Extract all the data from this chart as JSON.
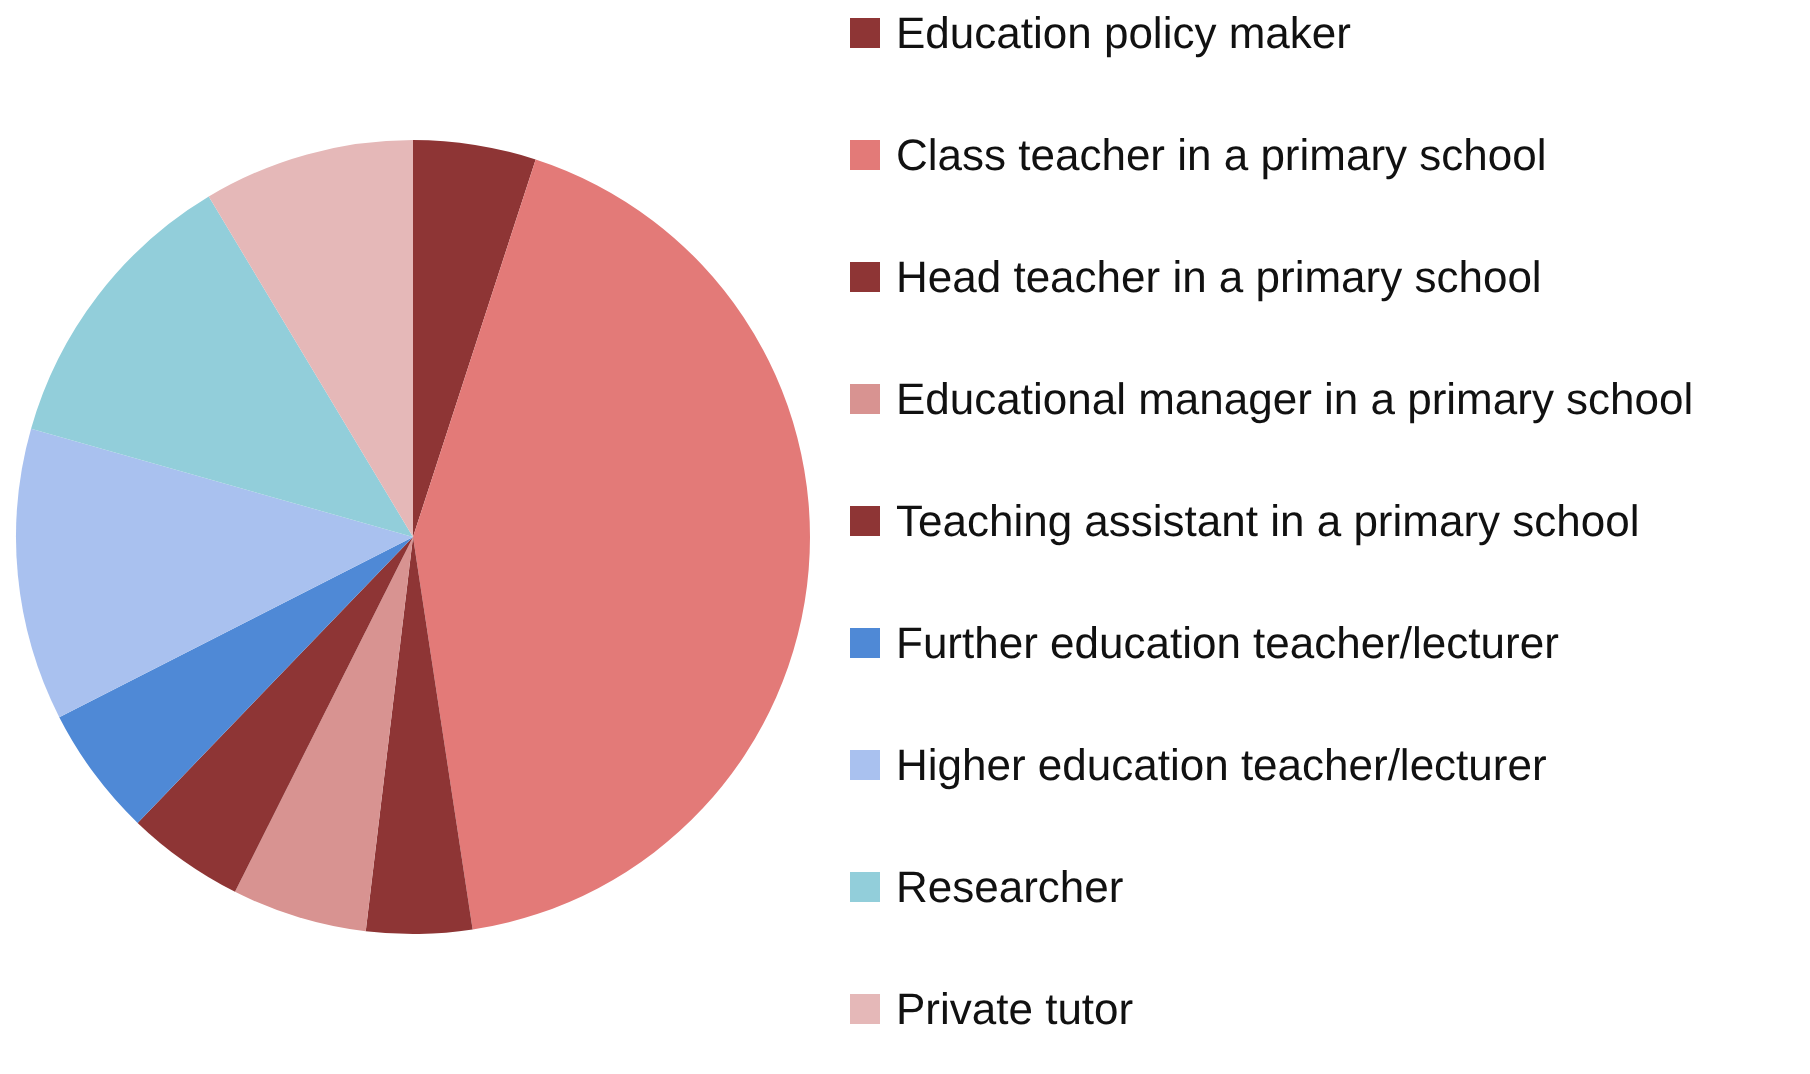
{
  "chart_data": {
    "type": "pie",
    "categories": [
      "Education policy maker",
      "Class teacher in a primary school",
      "Head teacher in a primary school",
      "Educational manager in a primary school",
      "Teaching assistant in a primary school",
      "Further education teacher/lecturer",
      "Higher education teacher/lecturer",
      "Researcher",
      "Private tutor"
    ],
    "values": [
      5,
      42.6,
      4.3,
      5.5,
      4.8,
      5.3,
      11.9,
      12,
      8.6
    ],
    "colors": [
      "#8e3535",
      "#e37a78",
      "#8e3535",
      "#d89391",
      "#8e3535",
      "#4f89d6",
      "#a9c1ef",
      "#92ceda",
      "#e5b8b8"
    ],
    "legend": "right"
  }
}
